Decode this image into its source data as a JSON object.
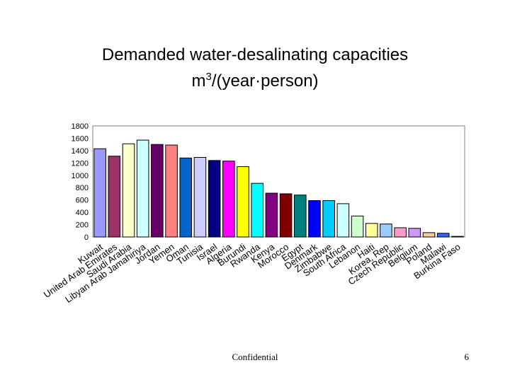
{
  "chart_data": {
    "type": "bar",
    "title_line1": "Demanded water-desalinating capacities",
    "title_line2_main": "m",
    "title_line2_sup": "3",
    "title_line2_rest": "/(year·person)",
    "ylim": [
      0,
      1800
    ],
    "yticks": [
      0,
      200,
      400,
      600,
      800,
      1000,
      1200,
      1400,
      1600,
      1800
    ],
    "grid": false,
    "categories": [
      "Kuwait",
      "United Arab Emirates",
      "Saudi Arabia",
      "Libyan Arab Jamahiriya",
      "Jordan",
      "Yemen",
      "Oman",
      "Tunisia",
      "Israel",
      "Algeria",
      "Burundi",
      "Rwanda",
      "Kenya",
      "Morocco",
      "Egypt",
      "Denmark",
      "Zimbabwe",
      "South Africa",
      "Lebanon",
      "Haiti",
      "Korea, Rep",
      "Czech Republic",
      "Belgium",
      "Poland",
      "Malawi",
      "Burkina Faso"
    ],
    "values": [
      1430,
      1310,
      1510,
      1570,
      1500,
      1490,
      1280,
      1290,
      1240,
      1230,
      1140,
      870,
      710,
      700,
      680,
      590,
      590,
      540,
      340,
      220,
      210,
      150,
      140,
      70,
      60,
      10
    ],
    "colors": [
      "#9999ff",
      "#993366",
      "#ffffcc",
      "#ccffff",
      "#660066",
      "#ff8080",
      "#0066cc",
      "#ccccff",
      "#000080",
      "#ff00ff",
      "#ffff00",
      "#00ffff",
      "#800080",
      "#800000",
      "#008080",
      "#0000ff",
      "#00ccff",
      "#ccffff",
      "#ccffcc",
      "#ffff99",
      "#99ccff",
      "#ff99cc",
      "#cc99ff",
      "#ffcc99",
      "#3366ff",
      "#33cccc"
    ]
  },
  "footer": {
    "center": "Confidential",
    "page": "6"
  }
}
